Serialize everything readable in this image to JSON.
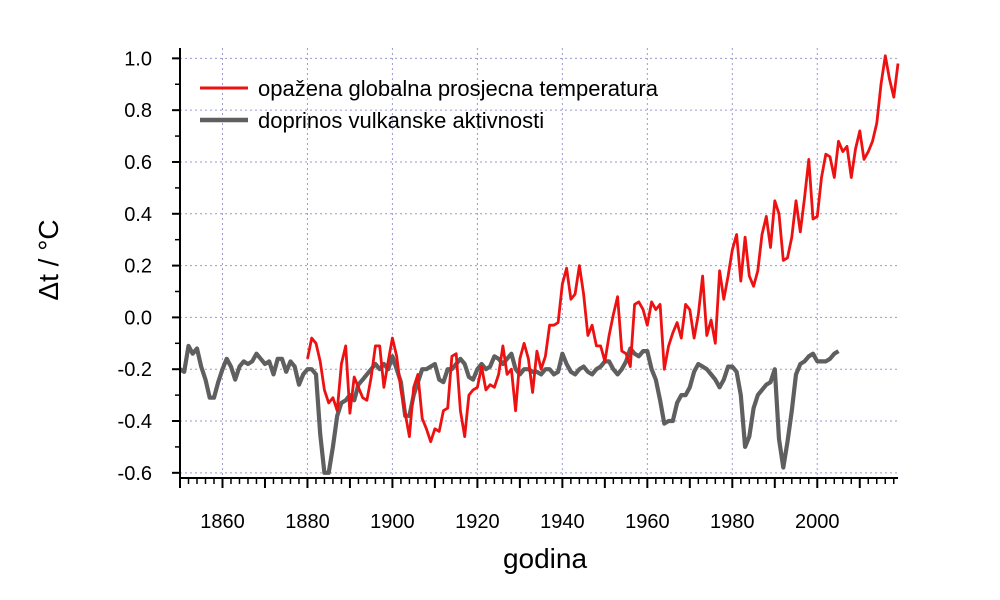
{
  "chart_data": {
    "type": "line",
    "title": "",
    "xlabel": "godina",
    "ylabel": "Δt / °C",
    "xlim": [
      1850,
      2019
    ],
    "ylim": [
      -0.62,
      1.04
    ],
    "x_ticks": [
      1860,
      1880,
      1900,
      1920,
      1940,
      1960,
      1980,
      2000
    ],
    "y_ticks": [
      -0.6,
      -0.4,
      -0.2,
      0.0,
      0.2,
      0.4,
      0.6,
      0.8,
      1.0
    ],
    "y_tick_labels": [
      "-0.6",
      "-0.4",
      "-0.2",
      "0.0",
      "0.2",
      "0.4",
      "0.6",
      "0.8",
      "1.0"
    ],
    "grid": true,
    "legend_position": "top-left",
    "series": [
      {
        "name": "opažena globalna prosjecna temperatura",
        "color": "#ee1111",
        "x": [
          1880,
          1881,
          1882,
          1883,
          1884,
          1885,
          1886,
          1887,
          1888,
          1889,
          1890,
          1891,
          1892,
          1893,
          1894,
          1895,
          1896,
          1897,
          1898,
          1899,
          1900,
          1901,
          1902,
          1903,
          1904,
          1905,
          1906,
          1907,
          1908,
          1909,
          1910,
          1911,
          1912,
          1913,
          1914,
          1915,
          1916,
          1917,
          1918,
          1919,
          1920,
          1921,
          1922,
          1923,
          1924,
          1925,
          1926,
          1927,
          1928,
          1929,
          1930,
          1931,
          1932,
          1933,
          1934,
          1935,
          1936,
          1937,
          1938,
          1939,
          1940,
          1941,
          1942,
          1943,
          1944,
          1945,
          1946,
          1947,
          1948,
          1949,
          1950,
          1951,
          1952,
          1953,
          1954,
          1955,
          1956,
          1957,
          1958,
          1959,
          1960,
          1961,
          1962,
          1963,
          1964,
          1965,
          1966,
          1967,
          1968,
          1969,
          1970,
          1971,
          1972,
          1973,
          1974,
          1975,
          1976,
          1977,
          1978,
          1979,
          1980,
          1981,
          1982,
          1983,
          1984,
          1985,
          1986,
          1987,
          1988,
          1989,
          1990,
          1991,
          1992,
          1993,
          1994,
          1995,
          1996,
          1997,
          1998,
          1999,
          2000,
          2001,
          2002,
          2003,
          2004,
          2005,
          2006,
          2007,
          2008,
          2009,
          2010,
          2011,
          2012,
          2013,
          2014,
          2015,
          2016,
          2017,
          2018,
          2019
        ],
        "y": [
          -0.16,
          -0.08,
          -0.1,
          -0.17,
          -0.28,
          -0.33,
          -0.31,
          -0.36,
          -0.18,
          -0.11,
          -0.37,
          -0.23,
          -0.27,
          -0.31,
          -0.32,
          -0.23,
          -0.11,
          -0.11,
          -0.27,
          -0.17,
          -0.08,
          -0.15,
          -0.28,
          -0.37,
          -0.46,
          -0.27,
          -0.22,
          -0.39,
          -0.43,
          -0.48,
          -0.43,
          -0.44,
          -0.36,
          -0.35,
          -0.15,
          -0.14,
          -0.36,
          -0.46,
          -0.3,
          -0.28,
          -0.27,
          -0.19,
          -0.28,
          -0.26,
          -0.27,
          -0.22,
          -0.11,
          -0.22,
          -0.2,
          -0.36,
          -0.16,
          -0.1,
          -0.16,
          -0.29,
          -0.13,
          -0.2,
          -0.15,
          -0.03,
          -0.03,
          -0.02,
          0.13,
          0.19,
          0.07,
          0.09,
          0.2,
          0.09,
          -0.07,
          -0.03,
          -0.11,
          -0.11,
          -0.17,
          -0.07,
          0.01,
          0.08,
          -0.13,
          -0.14,
          -0.19,
          0.05,
          0.06,
          0.03,
          -0.03,
          0.06,
          0.03,
          0.05,
          -0.2,
          -0.11,
          -0.06,
          -0.02,
          -0.08,
          0.05,
          0.03,
          -0.08,
          0.01,
          0.16,
          -0.07,
          -0.01,
          -0.1,
          0.18,
          0.07,
          0.16,
          0.26,
          0.32,
          0.14,
          0.31,
          0.16,
          0.12,
          0.18,
          0.32,
          0.39,
          0.27,
          0.45,
          0.4,
          0.22,
          0.23,
          0.31,
          0.45,
          0.33,
          0.46,
          0.61,
          0.38,
          0.39,
          0.54,
          0.63,
          0.62,
          0.54,
          0.68,
          0.64,
          0.66,
          0.54,
          0.65,
          0.72,
          0.61,
          0.64,
          0.68,
          0.75,
          0.9,
          1.01,
          0.92,
          0.85,
          0.98
        ]
      },
      {
        "name": "doprinos vulkanske aktivnosti",
        "color": "#5f5f5f",
        "x": [
          1850,
          1851,
          1852,
          1853,
          1854,
          1855,
          1856,
          1857,
          1858,
          1859,
          1860,
          1861,
          1862,
          1863,
          1864,
          1865,
          1866,
          1867,
          1868,
          1869,
          1870,
          1871,
          1872,
          1873,
          1874,
          1875,
          1876,
          1877,
          1878,
          1879,
          1880,
          1881,
          1882,
          1883,
          1884,
          1885,
          1886,
          1887,
          1888,
          1889,
          1890,
          1891,
          1892,
          1893,
          1894,
          1895,
          1896,
          1897,
          1898,
          1899,
          1900,
          1901,
          1902,
          1903,
          1904,
          1905,
          1906,
          1907,
          1908,
          1909,
          1910,
          1911,
          1912,
          1913,
          1914,
          1915,
          1916,
          1917,
          1918,
          1919,
          1920,
          1921,
          1922,
          1923,
          1924,
          1925,
          1926,
          1927,
          1928,
          1929,
          1930,
          1931,
          1932,
          1933,
          1934,
          1935,
          1936,
          1937,
          1938,
          1939,
          1940,
          1941,
          1942,
          1943,
          1944,
          1945,
          1946,
          1947,
          1948,
          1949,
          1950,
          1951,
          1952,
          1953,
          1954,
          1955,
          1956,
          1957,
          1958,
          1959,
          1960,
          1961,
          1962,
          1963,
          1964,
          1965,
          1966,
          1967,
          1968,
          1969,
          1970,
          1971,
          1972,
          1973,
          1974,
          1975,
          1976,
          1977,
          1978,
          1979,
          1980,
          1981,
          1982,
          1983,
          1984,
          1985,
          1986,
          1987,
          1988,
          1989,
          1990,
          1991,
          1992,
          1993,
          1994,
          1995,
          1996,
          1997,
          1998,
          1999,
          2000,
          2001,
          2002,
          2003,
          2004,
          2005
        ],
        "y": [
          -0.2,
          -0.21,
          -0.11,
          -0.14,
          -0.12,
          -0.19,
          -0.24,
          -0.31,
          -0.31,
          -0.25,
          -0.2,
          -0.16,
          -0.19,
          -0.24,
          -0.19,
          -0.17,
          -0.18,
          -0.17,
          -0.14,
          -0.16,
          -0.18,
          -0.17,
          -0.22,
          -0.16,
          -0.16,
          -0.21,
          -0.17,
          -0.19,
          -0.26,
          -0.22,
          -0.2,
          -0.2,
          -0.22,
          -0.45,
          -0.6,
          -0.6,
          -0.5,
          -0.38,
          -0.33,
          -0.32,
          -0.3,
          -0.32,
          -0.26,
          -0.24,
          -0.22,
          -0.2,
          -0.18,
          -0.2,
          -0.18,
          -0.2,
          -0.15,
          -0.2,
          -0.25,
          -0.38,
          -0.38,
          -0.3,
          -0.25,
          -0.2,
          -0.2,
          -0.19,
          -0.18,
          -0.24,
          -0.25,
          -0.2,
          -0.2,
          -0.18,
          -0.16,
          -0.18,
          -0.23,
          -0.24,
          -0.2,
          -0.18,
          -0.2,
          -0.19,
          -0.15,
          -0.16,
          -0.18,
          -0.16,
          -0.14,
          -0.2,
          -0.22,
          -0.2,
          -0.2,
          -0.21,
          -0.21,
          -0.22,
          -0.2,
          -0.2,
          -0.22,
          -0.21,
          -0.14,
          -0.18,
          -0.21,
          -0.22,
          -0.2,
          -0.19,
          -0.21,
          -0.22,
          -0.2,
          -0.19,
          -0.17,
          -0.17,
          -0.2,
          -0.22,
          -0.2,
          -0.17,
          -0.12,
          -0.14,
          -0.15,
          -0.13,
          -0.13,
          -0.2,
          -0.24,
          -0.32,
          -0.41,
          -0.4,
          -0.4,
          -0.33,
          -0.3,
          -0.3,
          -0.27,
          -0.21,
          -0.18,
          -0.19,
          -0.2,
          -0.22,
          -0.24,
          -0.27,
          -0.24,
          -0.19,
          -0.19,
          -0.21,
          -0.3,
          -0.5,
          -0.46,
          -0.35,
          -0.3,
          -0.28,
          -0.26,
          -0.25,
          -0.2,
          -0.47,
          -0.58,
          -0.48,
          -0.36,
          -0.22,
          -0.18,
          -0.17,
          -0.15,
          -0.14,
          -0.17,
          -0.17,
          -0.17,
          -0.16,
          -0.14,
          -0.13
        ]
      }
    ]
  }
}
